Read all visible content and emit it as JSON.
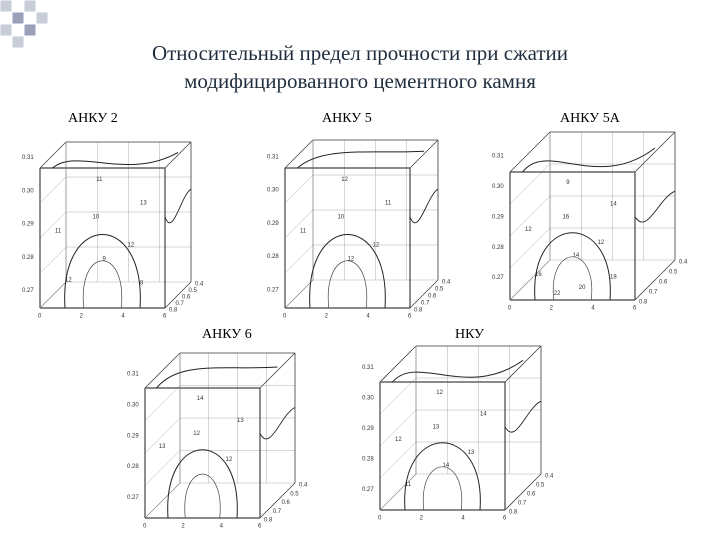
{
  "title": {
    "line1": "Относительный предел прочности при сжатии",
    "line2": "модифицированного цементного камня"
  },
  "panels": [
    {
      "label": "АНКУ 2",
      "yticks": [
        "0.31",
        "0.30",
        "0.29",
        "0.28",
        "0.27"
      ],
      "xticks": [
        "0",
        "2",
        "4",
        "6"
      ],
      "zticks": [
        "0.4",
        "0.5",
        "0.6",
        "0.7",
        "0.8"
      ],
      "contours": [
        "11",
        "13",
        "10",
        "11",
        "12",
        "9",
        "12",
        "8"
      ]
    },
    {
      "label": "АНКУ 5",
      "yticks": [
        "0.31",
        "0.30",
        "0.29",
        "0.28",
        "0.27"
      ],
      "xticks": [
        "0",
        "2",
        "4",
        "6"
      ],
      "zticks": [
        "0.4",
        "0.5",
        "0.6",
        "0.7",
        "0.8"
      ],
      "contours": [
        "12",
        "11",
        "10",
        "11",
        "12",
        "12"
      ]
    },
    {
      "label": "АНКУ 5А",
      "yticks": [
        "0.31",
        "0.30",
        "0.29",
        "0.28",
        "0.27"
      ],
      "xticks": [
        "0",
        "2",
        "4",
        "6"
      ],
      "zticks": [
        "0.4",
        "0.5",
        "0.6",
        "0.7",
        "0.8"
      ],
      "contours": [
        "9",
        "14",
        "16",
        "12",
        "12",
        "14",
        "16",
        "18",
        "20",
        "22"
      ]
    },
    {
      "label": "АНКУ 6",
      "yticks": [
        "0.31",
        "0.30",
        "0.29",
        "0.28",
        "0.27"
      ],
      "xticks": [
        "0",
        "2",
        "4",
        "6"
      ],
      "zticks": [
        "0.4",
        "0.5",
        "0.6",
        "0.7",
        "0.8"
      ],
      "contours": [
        "14",
        "13",
        "12",
        "13",
        "12"
      ]
    },
    {
      "label": "НКУ",
      "yticks": [
        "0.31",
        "0.30",
        "0.29",
        "0.28",
        "0.27"
      ],
      "xticks": [
        "0",
        "2",
        "4",
        "6"
      ],
      "zticks": [
        "0.4",
        "0.5",
        "0.6",
        "0.7",
        "0.8"
      ],
      "contours": [
        "12",
        "14",
        "13",
        "12",
        "13",
        "14",
        "11"
      ]
    }
  ]
}
